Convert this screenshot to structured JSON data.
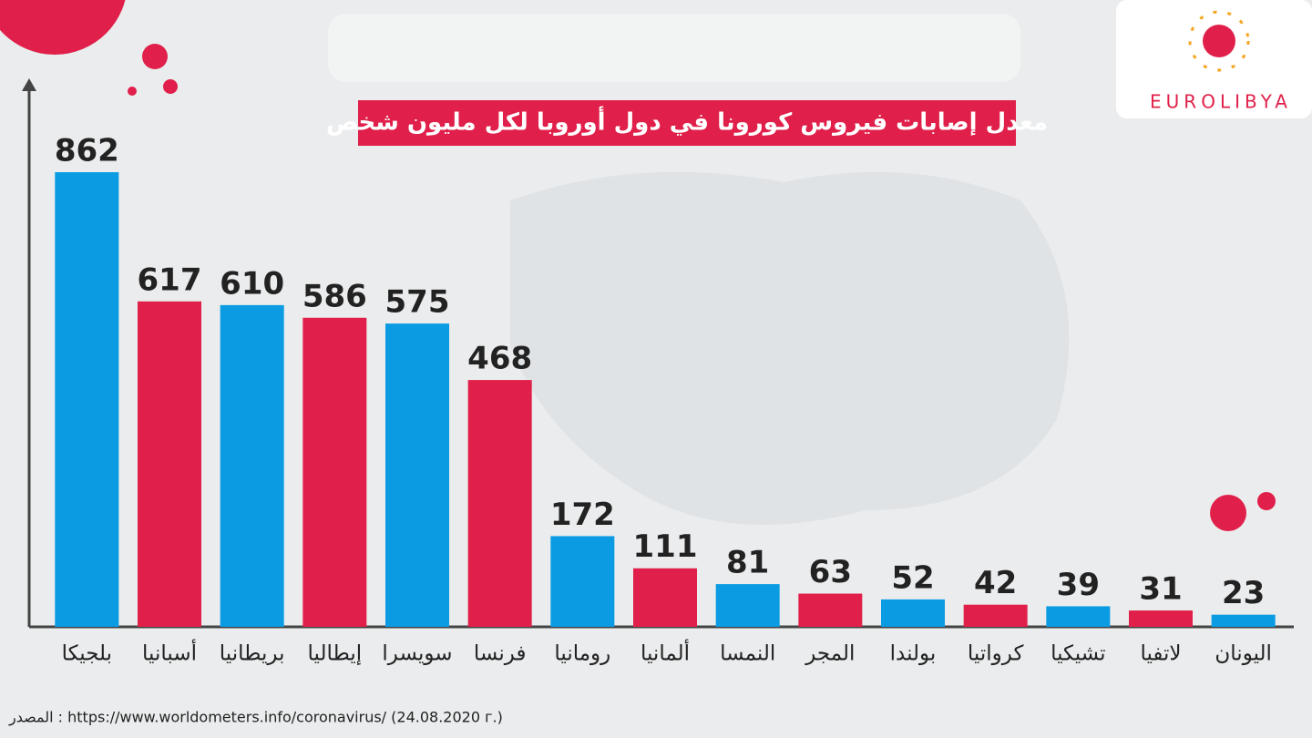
{
  "chart_data": {
    "type": "bar",
    "title": "معدل إصابات فيروس كورونا في دول أوروبا لكل مليون شخص",
    "categories": [
      "بلجيكا",
      "أسبانيا",
      "بريطانيا",
      "إيطاليا",
      "سويسرا",
      "فرنسا",
      "رومانيا",
      "ألمانيا",
      "النمسا",
      "المجر",
      "بولندا",
      "كرواتيا",
      "تشيكيا",
      "لاتفيا",
      "اليونان"
    ],
    "values": [
      862,
      617,
      610,
      586,
      575,
      468,
      172,
      111,
      81,
      63,
      52,
      42,
      39,
      31,
      23
    ],
    "colors": [
      "#0a9be3",
      "#e0204a",
      "#0a9be3",
      "#e0204a",
      "#0a9be3",
      "#e0204a",
      "#0a9be3",
      "#e0204a",
      "#0a9be3",
      "#e0204a",
      "#0a9be3",
      "#e0204a",
      "#0a9be3",
      "#e0204a",
      "#0a9be3"
    ],
    "ylim": [
      0,
      900
    ],
    "source": "المصدر : https://www.worldometers.info/coronavirus/ (24.08.2020 г.)",
    "logo": "EUROLIBYA"
  }
}
